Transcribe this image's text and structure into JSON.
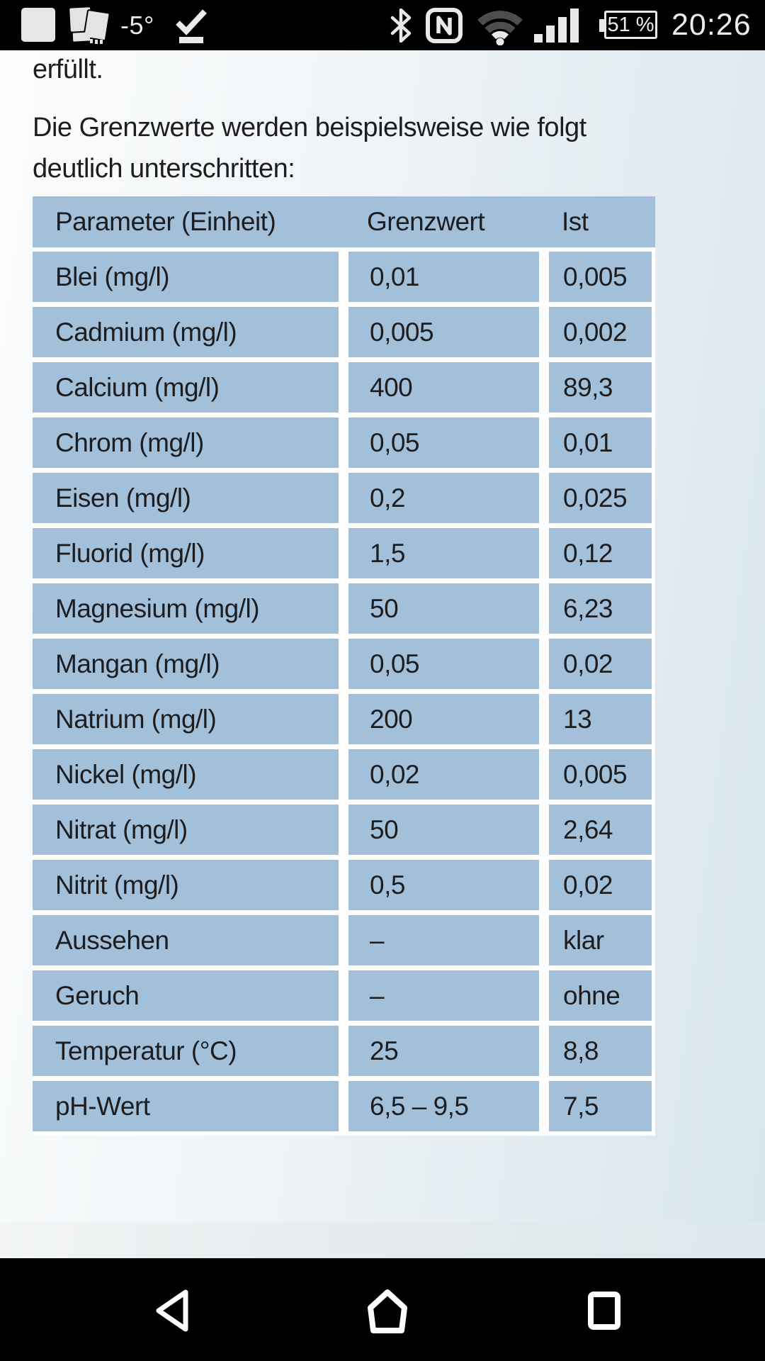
{
  "status_bar": {
    "temperature": "-5°",
    "battery_percent": "51 %",
    "time": "20:26",
    "icons": [
      "notification-app-icon",
      "screenshot-thumbnails-icon",
      "sync-check-icon",
      "bluetooth-icon",
      "nfc-icon",
      "wifi-icon",
      "cell-signal-icon",
      "battery-icon"
    ]
  },
  "content": {
    "paragraph_end": "erfüllt.",
    "intro": [
      "Die Grenzwerte werden beispielsweise wie folgt",
      "deutlich unterschritten:"
    ],
    "table": {
      "headers": [
        "Parameter (Einheit)",
        "Grenzwert",
        "Ist"
      ],
      "rows": [
        [
          "Blei (mg/l)",
          "0,01",
          "0,005"
        ],
        [
          "Cadmium (mg/l)",
          "0,005",
          "0,002"
        ],
        [
          "Calcium (mg/l)",
          "400",
          "89,3"
        ],
        [
          "Chrom (mg/l)",
          "0,05",
          "0,01"
        ],
        [
          "Eisen (mg/l)",
          "0,2",
          "0,025"
        ],
        [
          "Fluorid (mg/l)",
          "1,5",
          "0,12"
        ],
        [
          "Magnesium (mg/l)",
          "50",
          "6,23"
        ],
        [
          "Mangan (mg/l)",
          "0,05",
          "0,02"
        ],
        [
          "Natrium (mg/l)",
          "200",
          "13"
        ],
        [
          "Nickel (mg/l)",
          "0,02",
          "0,005"
        ],
        [
          "Nitrat (mg/l)",
          "50",
          "2,64"
        ],
        [
          "Nitrit (mg/l)",
          "0,5",
          "0,02"
        ],
        [
          "Aussehen",
          "–",
          "klar"
        ],
        [
          "Geruch",
          "–",
          "ohne"
        ],
        [
          "Temperatur (°C)",
          "25",
          "8,8"
        ],
        [
          "pH-Wert",
          "6,5 – 9,5",
          "7,5"
        ]
      ]
    }
  },
  "nav_bar": {
    "buttons": [
      "back",
      "home",
      "recents"
    ]
  },
  "colors": {
    "table_cell_blue": "#a2c0da",
    "page_gradient_start": "#fcfdfd",
    "page_gradient_end": "#d8e5ed",
    "bar_background": "#000000",
    "status_icon_white": "#e9e9e9",
    "wifi_dim_gray": "#4d4d4d",
    "text_dark": "#1d1d1f"
  }
}
